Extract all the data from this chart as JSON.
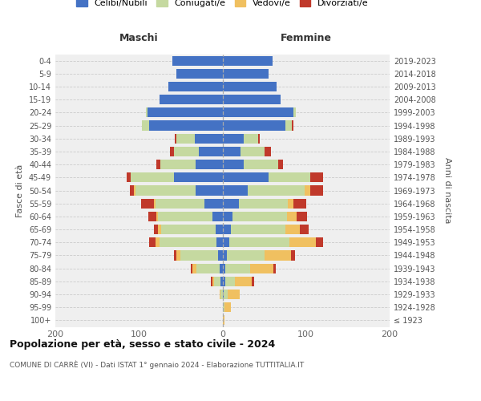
{
  "age_groups": [
    "100+",
    "95-99",
    "90-94",
    "85-89",
    "80-84",
    "75-79",
    "70-74",
    "65-69",
    "60-64",
    "55-59",
    "50-54",
    "45-49",
    "40-44",
    "35-39",
    "30-34",
    "25-29",
    "20-24",
    "15-19",
    "10-14",
    "5-9",
    "0-4"
  ],
  "birth_years": [
    "≤ 1923",
    "1924-1928",
    "1929-1933",
    "1934-1938",
    "1939-1943",
    "1944-1948",
    "1949-1953",
    "1954-1958",
    "1959-1963",
    "1964-1968",
    "1969-1973",
    "1974-1978",
    "1979-1983",
    "1984-1988",
    "1989-1993",
    "1994-1998",
    "1999-2003",
    "2004-2008",
    "2009-2013",
    "2014-2018",
    "2019-2023"
  ],
  "colors": {
    "celibi": "#4472c4",
    "coniugati": "#c5d9a0",
    "vedovi": "#f0c060",
    "divorziati": "#c0392b"
  },
  "maschi": {
    "celibi": [
      0,
      0,
      0,
      2,
      3,
      5,
      7,
      8,
      12,
      22,
      32,
      58,
      32,
      28,
      33,
      88,
      90,
      75,
      65,
      55,
      60
    ],
    "coniugati": [
      0,
      0,
      2,
      8,
      28,
      45,
      68,
      65,
      65,
      58,
      72,
      52,
      42,
      30,
      22,
      8,
      2,
      0,
      0,
      0,
      0
    ],
    "vedovi": [
      0,
      0,
      1,
      2,
      5,
      5,
      5,
      4,
      2,
      2,
      2,
      0,
      0,
      0,
      0,
      0,
      0,
      0,
      0,
      0,
      0
    ],
    "divorziati": [
      0,
      0,
      0,
      2,
      2,
      3,
      8,
      5,
      10,
      15,
      5,
      5,
      5,
      5,
      2,
      0,
      0,
      0,
      0,
      0,
      0
    ]
  },
  "femmine": {
    "celibi": [
      0,
      0,
      1,
      3,
      3,
      5,
      8,
      10,
      12,
      20,
      30,
      55,
      25,
      22,
      25,
      75,
      85,
      70,
      65,
      55,
      60
    ],
    "coniugati": [
      0,
      2,
      5,
      12,
      30,
      45,
      72,
      65,
      65,
      58,
      68,
      50,
      42,
      28,
      18,
      8,
      3,
      0,
      0,
      0,
      0
    ],
    "vedovi": [
      2,
      8,
      15,
      20,
      28,
      32,
      32,
      18,
      12,
      7,
      7,
      0,
      0,
      0,
      0,
      0,
      0,
      0,
      0,
      0,
      0
    ],
    "divorziati": [
      0,
      0,
      0,
      3,
      3,
      5,
      8,
      10,
      12,
      15,
      15,
      15,
      5,
      8,
      2,
      2,
      0,
      0,
      0,
      0,
      0
    ]
  },
  "xlim": 200,
  "title": "Popolazione per età, sesso e stato civile - 2024",
  "subtitle": "COMUNE DI CARRÈ (VI) - Dati ISTAT 1° gennaio 2024 - Elaborazione TUTTITALIA.IT",
  "ylabel_left": "Fasce di età",
  "ylabel_right": "Anni di nascita",
  "header_maschi": "Maschi",
  "header_femmine": "Femmine",
  "legend_labels": [
    "Celibi/Nubili",
    "Coniugati/e",
    "Vedovi/e",
    "Divorziati/e"
  ],
  "bg_color": "#efefef"
}
